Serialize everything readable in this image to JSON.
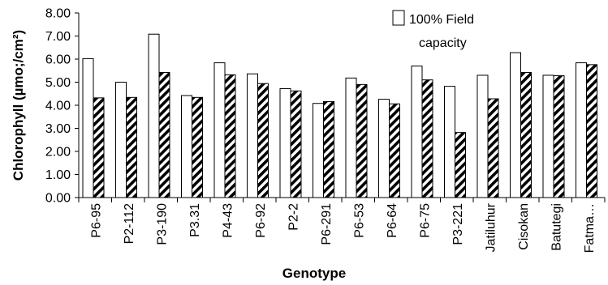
{
  "chart_data": {
    "type": "bar",
    "ylabel": "Chlorophyll (µmo;/cm²)",
    "xlabel": "Genotype",
    "ylim": [
      0,
      8
    ],
    "ytick_step": 1,
    "yticks": [
      "0.00",
      "1.00",
      "2.00",
      "3.00",
      "4.00",
      "5.00",
      "6.00",
      "7.00",
      "8.00"
    ],
    "grid": false,
    "legend_position": "top-right",
    "categories": [
      "P6-95",
      "P2-112",
      "P3-190",
      "P3.31",
      "P4-43",
      "P6-92",
      "P2-2",
      "P6-291",
      "P6-53",
      "P6-64",
      "P6-75",
      "P3-221",
      "Jatiluhur",
      "Cisokan",
      "Batutegi",
      "Fatma…"
    ],
    "series": [
      {
        "name": "100%  Field capacity",
        "legend_lines": [
          "100%  Field",
          "capacity"
        ],
        "pattern": "white",
        "values": [
          6.02,
          5.0,
          7.08,
          4.42,
          5.84,
          5.36,
          4.72,
          4.08,
          5.18,
          4.26,
          5.7,
          4.82,
          5.3,
          6.28,
          5.3,
          5.84
        ]
      },
      {
        "name": "",
        "pattern": "diagonal-hatch",
        "values": [
          4.32,
          4.34,
          5.42,
          4.34,
          5.32,
          4.94,
          4.62,
          4.16,
          4.9,
          4.06,
          5.1,
          2.82,
          4.28,
          5.42,
          5.28,
          5.76
        ]
      }
    ]
  }
}
